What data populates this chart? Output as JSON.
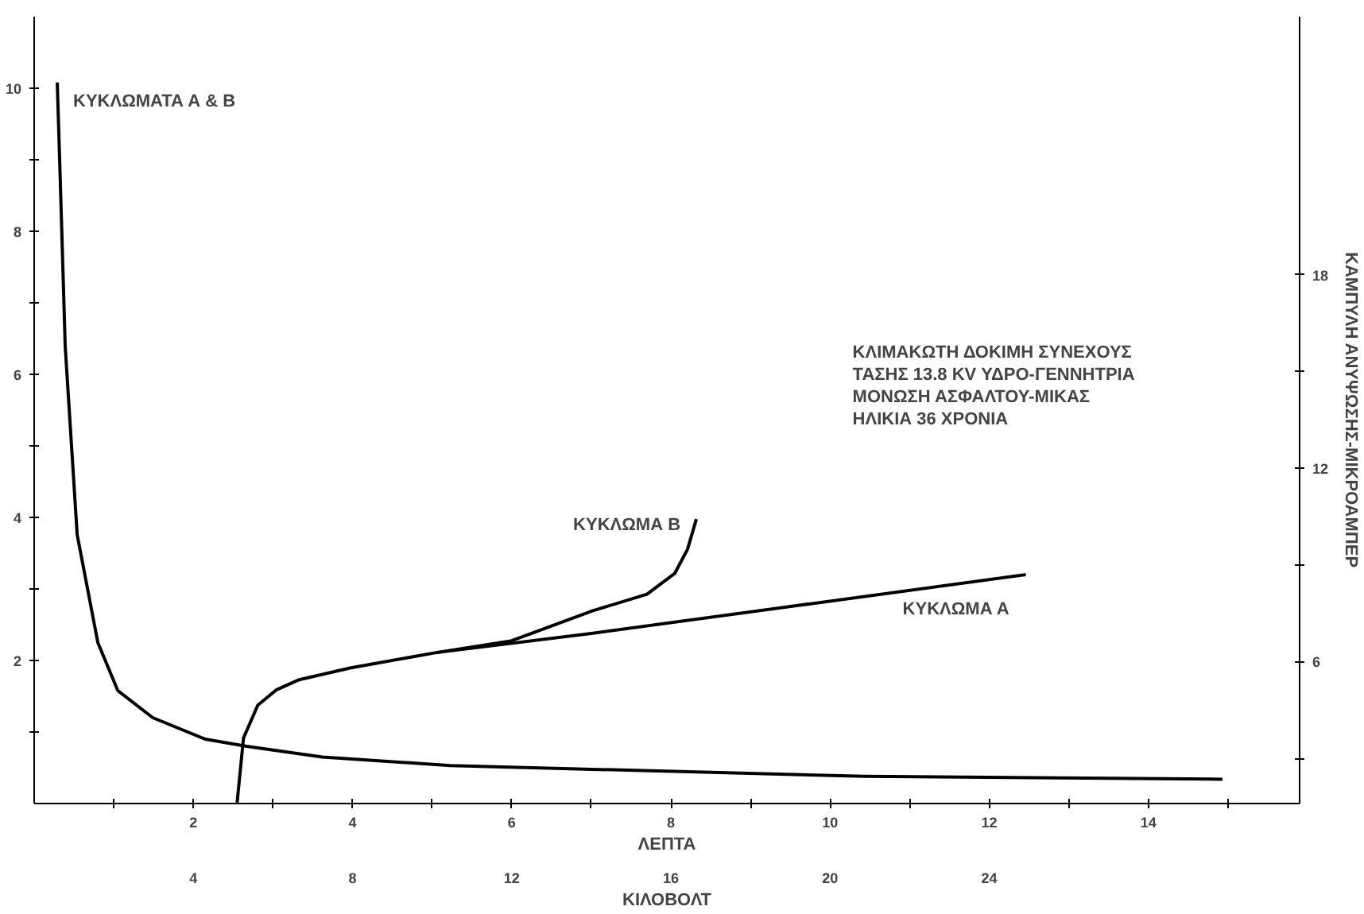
{
  "chart_data": {
    "type": "line",
    "xlabel": "ΛΕΠΤΑ",
    "x2label": "ΚΙΛΟΒΟΛΤ",
    "y2label": "ΚΑΜΠΥΛΗ ΑΝΥΨΩΣΗΣ-ΜΙΚΡΟΑΜΠΕΡ",
    "xlim": [
      0,
      15.9
    ],
    "xticks": [
      {
        "value": 1,
        "label": null
      },
      2,
      {
        "value": 3,
        "label": null
      },
      4,
      {
        "value": 5,
        "label": null
      },
      6,
      {
        "value": 7,
        "label": null
      },
      8,
      {
        "value": 9,
        "label": null
      },
      10,
      {
        "value": 11,
        "label": null
      },
      12,
      {
        "value": 13,
        "label": null
      },
      14,
      {
        "value": 15,
        "label": null
      }
    ],
    "x2lim": [
      0,
      31.8
    ],
    "x2ticks": [
      4,
      8,
      12,
      16,
      20,
      24
    ],
    "ylim": [
      0,
      11
    ],
    "yticks": [
      {
        "value": 1,
        "label": null
      },
      2,
      {
        "value": 3,
        "label": null
      },
      4,
      {
        "value": 5,
        "label": null
      },
      6,
      {
        "value": 7,
        "label": null
      },
      8,
      {
        "value": 9,
        "label": null
      },
      10
    ],
    "y2lim": [
      1.6,
      26
    ],
    "y2ticks": [
      {
        "value": 3,
        "label": null
      },
      6,
      {
        "value": 9,
        "label": null
      },
      12,
      {
        "value": 15,
        "label": null
      },
      18
    ],
    "grid": false,
    "legend": false,
    "marker": "none",
    "line_style": "solid",
    "series": [
      {
        "name": "ΚΥΚΛΩΜΑΤΑ Α & Β",
        "color": "#000000",
        "x": [
          0.29,
          0.32,
          0.39,
          0.54,
          0.8,
          1.05,
          1.49,
          2.15,
          2.67,
          3.62,
          5.23,
          10.43,
          14.93
        ],
        "values": [
          10.08,
          9.0,
          6.39,
          3.76,
          2.25,
          1.58,
          1.2,
          0.9,
          0.8,
          0.65,
          0.53,
          0.38,
          0.34
        ]
      },
      {
        "name": "ΚΥΚΛΩΜΑ Α",
        "color": "#000000",
        "axis": "y2",
        "x": [
          2.55,
          2.63,
          2.81,
          3.04,
          3.33,
          3.98,
          5.05,
          7.02,
          12.46
        ],
        "values": [
          1.63,
          3.63,
          4.65,
          5.12,
          5.44,
          5.81,
          6.28,
          6.88,
          8.7
        ]
      },
      {
        "name": "ΚΥΚΛΩΜΑ Β",
        "color": "#000000",
        "axis": "y2",
        "x": [
          5.05,
          6.0,
          7.02,
          7.7,
          8.05,
          8.21,
          8.32
        ],
        "values": [
          6.28,
          6.65,
          7.58,
          8.09,
          8.74,
          9.49,
          10.42
        ]
      }
    ],
    "annotations": [
      "ΚΛΙΜΑΚΩΤΗ ΔΟΚΙΜΗ ΣΥΝΕΧΟΥΣ",
      "ΤΑΣΗΣ 13.8 KV ΥΔΡΟ-ΓΕΝΝΗΤΡΙΑ",
      "ΜΟΝΩΣΗ ΑΣΦΑΛΤΟΥ-ΜΙΚΑΣ",
      "ΗΛΙΚΙΑ 36 ΧΡΟΝΙΑ"
    ]
  }
}
